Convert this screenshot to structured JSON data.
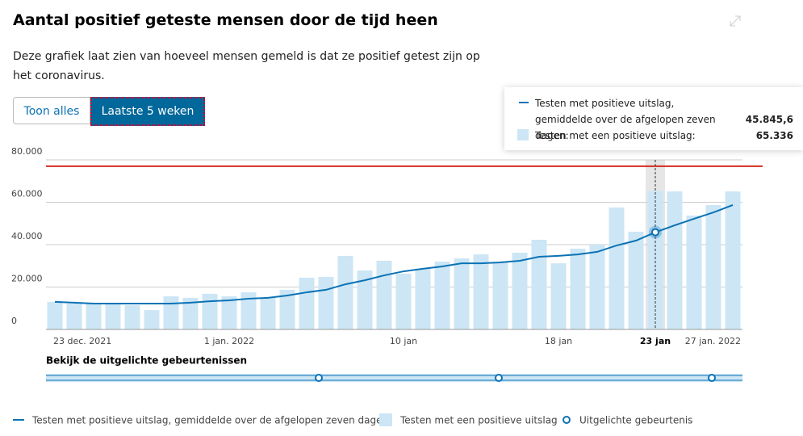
{
  "chart_data": {
    "type": "bar-line",
    "title": "Aantal positief geteste mensen door de tijd heen",
    "subtitle": "Deze grafiek laat zien van hoeveel mensen gemeld is dat ze positief getest zijn op het coronavirus.",
    "buttons": [
      "Toon alles",
      "Laatste 5 weken"
    ],
    "events_label": "Bekijk de uitgelichte gebeurtenissen",
    "events_legend": "Uitgelichte gebeurtenis",
    "categories": [
      "23 dec. 2021",
      null,
      null,
      null,
      null,
      null,
      null,
      null,
      null,
      "1 jan. 2022",
      null,
      null,
      null,
      null,
      null,
      null,
      null,
      null,
      "10 jan",
      null,
      null,
      null,
      null,
      null,
      null,
      null,
      "18 jan",
      null,
      null,
      null,
      null,
      "23 jan",
      null,
      null,
      null,
      "27 jan. 2022"
    ],
    "highlight_index": 31,
    "series": [
      {
        "name": "Testen met een positieve uitslag",
        "kind": "bar",
        "color": "#cce6f5",
        "values": [
          13000,
          12200,
          12200,
          11800,
          11400,
          9100,
          15600,
          14900,
          16800,
          15600,
          17500,
          14900,
          18700,
          24400,
          24800,
          34700,
          27800,
          32400,
          26300,
          28600,
          32000,
          33500,
          35400,
          31600,
          36200,
          42300,
          31200,
          38100,
          40000,
          57500,
          46100,
          65336,
          65100,
          53700,
          58700,
          65100
        ]
      },
      {
        "name": "Testen met positieve uitslag, gemiddelde over de afgelopen zeven dagen",
        "kind": "line",
        "color": "#0b72b5",
        "values": [
          13000,
          12600,
          12200,
          12200,
          12200,
          12200,
          12200,
          12600,
          13300,
          13700,
          14500,
          14900,
          16000,
          17500,
          18700,
          21300,
          23200,
          25500,
          27400,
          28600,
          29700,
          31200,
          31200,
          31600,
          32400,
          34300,
          34700,
          35400,
          36600,
          39600,
          41900,
          45845.6,
          49100,
          52200,
          55200,
          58700
        ]
      }
    ],
    "reference_line": {
      "value": 77000,
      "color": "#d52b1e"
    },
    "tooltip": {
      "items": [
        {
          "label": "Testen met positieve uitslag, gemiddelde over de afgelopen zeven dagen:",
          "value": 45845.6,
          "value_label": "45.845,6"
        },
        {
          "label": "Testen met een positieve uitslag:",
          "value": 65336,
          "value_label": "65.336"
        }
      ]
    },
    "ylim": [
      0,
      80000
    ],
    "yticks": [
      0,
      {
        "value": 20000,
        "label": "20.000"
      },
      {
        "value": 40000,
        "label": "40.000"
      },
      {
        "value": 60000,
        "label": "60.000"
      },
      {
        "value": 80000,
        "label": "80.000"
      }
    ],
    "grid": true
  }
}
